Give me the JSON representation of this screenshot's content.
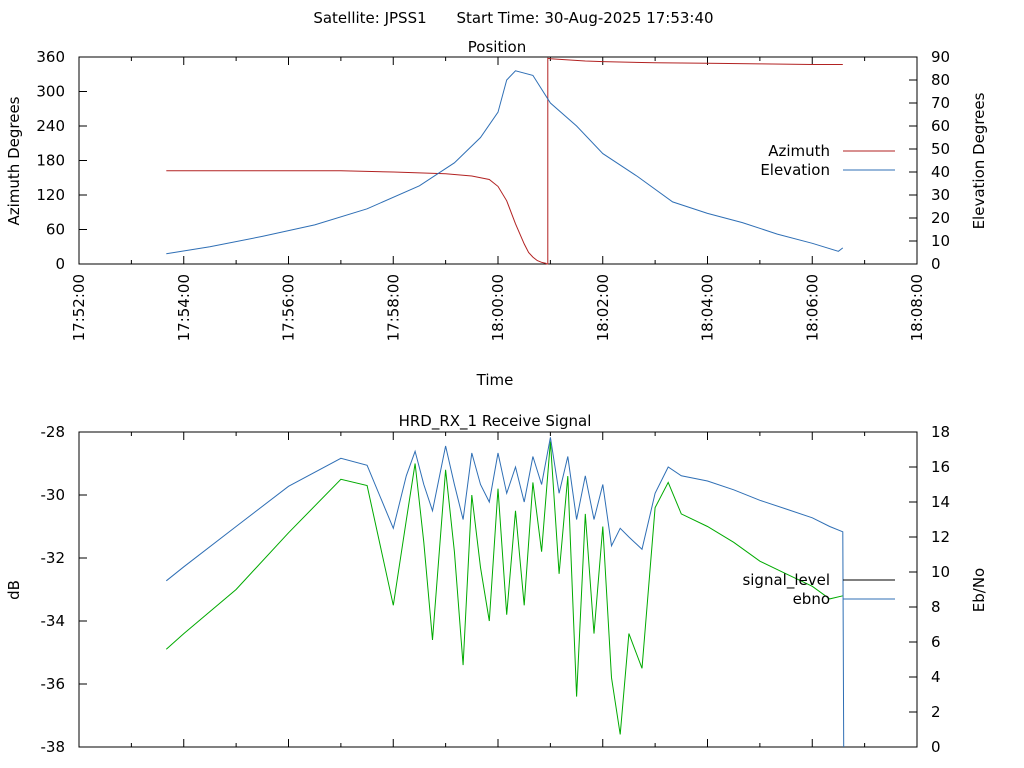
{
  "header": {
    "satellite": "Satellite: JPSS1",
    "start_time": "Start Time: 30-Aug-2025 17:53:40"
  },
  "chart_data": [
    {
      "type": "line",
      "title": "Position",
      "xlabel": "Time",
      "ylabel": "Azimuth Degrees",
      "y2label": "Elevation Degrees",
      "x_ticks": [
        "17:52:00",
        "17:54:00",
        "17:56:00",
        "17:58:00",
        "18:00:00",
        "18:02:00",
        "18:04:00",
        "18:06:00",
        "18:08:00"
      ],
      "xlim": [
        "17:52:00",
        "18:08:00"
      ],
      "ylim": [
        0,
        360
      ],
      "y_ticks": [
        "0",
        "60",
        "120",
        "180",
        "240",
        "300",
        "360"
      ],
      "y2lim": [
        0,
        90
      ],
      "y2_ticks": [
        "0",
        "10",
        "20",
        "30",
        "40",
        "50",
        "60",
        "70",
        "80",
        "90"
      ],
      "grid": false,
      "legend_position": "right",
      "colors": {
        "azimuth": "#b22222",
        "elevation": "#2f6fb5"
      },
      "series": [
        {
          "name": "Azimuth",
          "axis": "left",
          "x": [
            "17:53:40",
            "17:55:00",
            "17:56:00",
            "17:57:00",
            "17:58:00",
            "17:59:00",
            "17:59:30",
            "17:59:50",
            "18:00:00",
            "18:00:10",
            "18:00:20",
            "18:00:30",
            "18:00:35",
            "18:00:40",
            "18:00:45",
            "18:00:50",
            "18:00:55",
            "18:00:56",
            "18:00:57",
            "18:01:00",
            "18:01:20",
            "18:01:40",
            "18:02:00",
            "18:03:00",
            "18:04:00",
            "18:05:00",
            "18:06:00",
            "18:06:35"
          ],
          "values": [
            162,
            162,
            162,
            162,
            160,
            157,
            153,
            147,
            135,
            110,
            70,
            35,
            20,
            12,
            6,
            3,
            1,
            0,
            358,
            357,
            355,
            353,
            352,
            350,
            349,
            348,
            347,
            347
          ]
        },
        {
          "name": "Elevation",
          "axis": "right",
          "x": [
            "17:53:40",
            "17:54:30",
            "17:55:30",
            "17:56:30",
            "17:57:30",
            "17:58:30",
            "17:59:10",
            "17:59:40",
            "18:00:00",
            "18:00:10",
            "18:00:20",
            "18:00:40",
            "18:01:00",
            "18:01:30",
            "18:02:00",
            "18:02:40",
            "18:03:20",
            "18:04:00",
            "18:04:40",
            "18:05:20",
            "18:06:00",
            "18:06:30",
            "18:06:35"
          ],
          "values": [
            4.5,
            7.5,
            12,
            17,
            24,
            34,
            44,
            55,
            66,
            80,
            84,
            82,
            70,
            60,
            48,
            38,
            27,
            22,
            18,
            13,
            9,
            5.5,
            7
          ]
        }
      ]
    },
    {
      "type": "line",
      "title": "HRD_RX_1 Receive Signal",
      "xlabel": "",
      "ylabel": "dB",
      "y2label": "Eb/No",
      "xlim": [
        "17:52:00",
        "18:08:00"
      ],
      "ylim": [
        -38,
        -28
      ],
      "y_ticks": [
        "-38",
        "-36",
        "-34",
        "-32",
        "-30",
        "-28"
      ],
      "y2lim": [
        0,
        18
      ],
      "y2_ticks": [
        "0",
        "2",
        "4",
        "6",
        "8",
        "10",
        "12",
        "14",
        "16",
        "18"
      ],
      "grid": false,
      "legend_position": "right",
      "colors": {
        "signal_level": "#000000",
        "ebno": "#2f6fb5",
        "trace": "#00aa00"
      },
      "series": [
        {
          "name": "signal_level",
          "axis": "left",
          "x": [
            "17:53:40",
            "17:54:00",
            "17:55:00",
            "17:56:00",
            "17:57:00",
            "17:57:30",
            "17:58:00",
            "17:58:15",
            "17:58:25",
            "17:58:35",
            "17:58:45",
            "17:59:00",
            "17:59:10",
            "17:59:20",
            "17:59:30",
            "17:59:40",
            "17:59:50",
            "18:00:00",
            "18:00:10",
            "18:00:20",
            "18:00:30",
            "18:00:40",
            "18:00:50",
            "18:01:00",
            "18:01:10",
            "18:01:20",
            "18:01:30",
            "18:01:40",
            "18:01:50",
            "18:02:00",
            "18:02:10",
            "18:02:20",
            "18:02:30",
            "18:02:45",
            "18:03:00",
            "18:03:15",
            "18:03:30",
            "18:04:00",
            "18:04:30",
            "18:05:00",
            "18:05:30",
            "18:06:00",
            "18:06:20",
            "18:06:35"
          ],
          "values": [
            -34.9,
            -34.4,
            -33.0,
            -31.2,
            -29.5,
            -29.7,
            -33.5,
            -30.8,
            -29.0,
            -31.5,
            -34.6,
            -29.2,
            -31.8,
            -35.4,
            -30.0,
            -32.3,
            -34.0,
            -29.8,
            -33.8,
            -30.5,
            -33.5,
            -29.6,
            -31.8,
            -28.3,
            -32.5,
            -29.4,
            -36.4,
            -30.6,
            -34.4,
            -31.0,
            -35.8,
            -37.6,
            -34.4,
            -35.5,
            -30.4,
            -29.6,
            -30.6,
            -31.0,
            -31.5,
            -32.1,
            -32.5,
            -32.9,
            -33.3,
            -33.2
          ]
        },
        {
          "name": "ebno",
          "axis": "right",
          "x": [
            "17:53:40",
            "17:54:00",
            "17:55:00",
            "17:56:00",
            "17:57:00",
            "17:57:30",
            "17:58:00",
            "17:58:15",
            "17:58:25",
            "17:58:35",
            "17:58:45",
            "17:59:00",
            "17:59:10",
            "17:59:20",
            "17:59:30",
            "17:59:40",
            "17:59:50",
            "18:00:00",
            "18:00:10",
            "18:00:20",
            "18:00:30",
            "18:00:40",
            "18:00:50",
            "18:01:00",
            "18:01:10",
            "18:01:20",
            "18:01:30",
            "18:01:40",
            "18:01:50",
            "18:02:00",
            "18:02:10",
            "18:02:20",
            "18:02:30",
            "18:02:45",
            "18:03:00",
            "18:03:15",
            "18:03:30",
            "18:04:00",
            "18:04:30",
            "18:05:00",
            "18:05:30",
            "18:06:00",
            "18:06:20",
            "18:06:35",
            "18:06:36"
          ],
          "values": [
            9.5,
            10.3,
            12.6,
            14.9,
            16.5,
            16.1,
            12.5,
            15.5,
            16.9,
            15.0,
            13.5,
            17.2,
            15.0,
            13.0,
            16.8,
            15.0,
            14.0,
            16.8,
            14.5,
            16.0,
            14.0,
            16.6,
            15.0,
            17.7,
            14.5,
            16.6,
            13.0,
            15.5,
            13.0,
            15.0,
            11.5,
            12.5,
            12.0,
            11.3,
            14.5,
            16.0,
            15.5,
            15.2,
            14.7,
            14.1,
            13.6,
            13.1,
            12.6,
            12.3,
            0
          ]
        }
      ]
    }
  ]
}
